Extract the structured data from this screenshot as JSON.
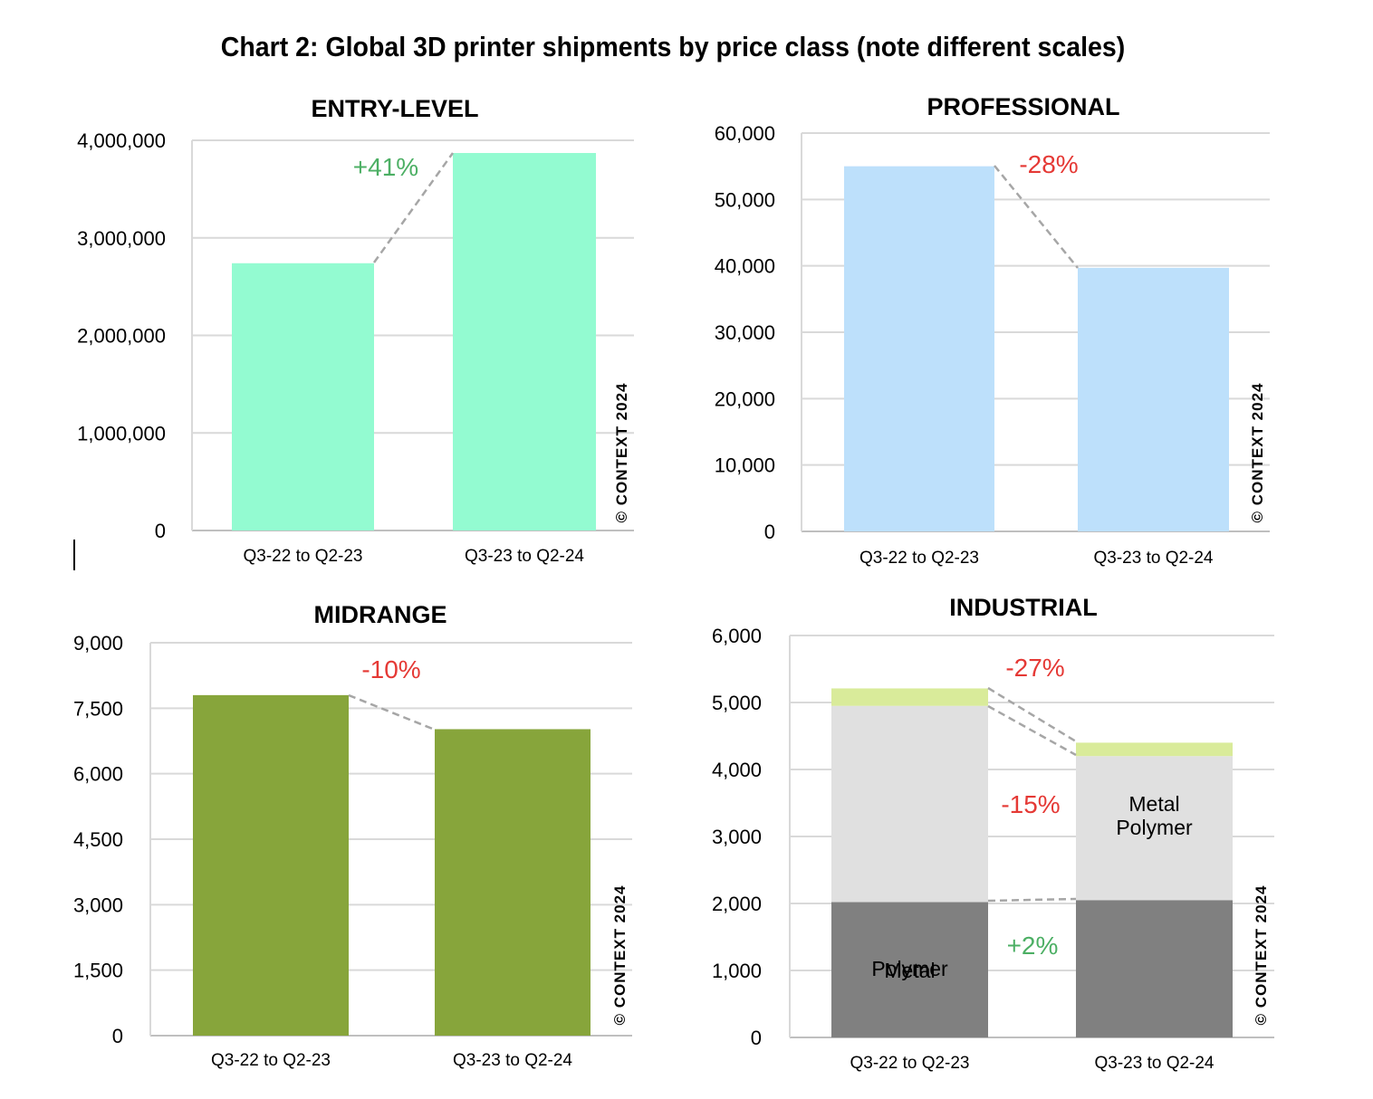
{
  "title": "Chart 2: Global 3D printer shipments by price class (note different scales)",
  "chart_data": [
    {
      "id": "entry",
      "type": "bar",
      "title": "ENTRY-LEVEL",
      "categories": [
        "Q3-22 to Q2-23",
        "Q3-23 to Q2-24"
      ],
      "values": [
        2740000,
        3870000
      ],
      "ylim": [
        0,
        4000000
      ],
      "yticks": [
        0,
        1000000,
        2000000,
        3000000,
        4000000
      ],
      "ytick_labels": [
        "0",
        "1,000,000",
        "2,000,000",
        "3,000,000",
        "4,000,000"
      ],
      "bar_color": "#93fbd1",
      "annotations": [
        {
          "text": "+41%",
          "color": "#4caf64"
        }
      ],
      "watermark": "© CONTEXT 2024"
    },
    {
      "id": "professional",
      "type": "bar",
      "title": "PROFESSIONAL",
      "categories": [
        "Q3-22 to Q2-23",
        "Q3-23 to Q2-24"
      ],
      "values": [
        55000,
        39700
      ],
      "ylim": [
        0,
        60000
      ],
      "yticks": [
        0,
        10000,
        20000,
        30000,
        40000,
        50000,
        60000
      ],
      "ytick_labels": [
        "0",
        "10,000",
        "20,000",
        "30,000",
        "40,000",
        "50,000",
        "60,000"
      ],
      "bar_color": "#bde0fb",
      "annotations": [
        {
          "text": "-28%",
          "color": "#e53935"
        }
      ],
      "watermark": "© CONTEXT 2024"
    },
    {
      "id": "midrange",
      "type": "bar",
      "title": "MIDRANGE",
      "categories": [
        "Q3-22 to Q2-23",
        "Q3-23 to Q2-24"
      ],
      "values": [
        7800,
        7020
      ],
      "ylim": [
        0,
        9000
      ],
      "yticks": [
        0,
        1500,
        3000,
        4500,
        6000,
        7500,
        9000
      ],
      "ytick_labels": [
        "0",
        "1,500",
        "3,000",
        "4,500",
        "6,000",
        "7,500",
        "9,000"
      ],
      "bar_color": "#87a53b",
      "annotations": [
        {
          "text": "-10%",
          "color": "#e53935"
        }
      ],
      "watermark": "© CONTEXT 2024"
    },
    {
      "id": "industrial",
      "type": "bar",
      "stacked": true,
      "title": "INDUSTRIAL",
      "categories": [
        "Q3-22 to Q2-23",
        "Q3-23 to Q2-24"
      ],
      "series": [
        {
          "name": "Metal",
          "values": [
            2020,
            2050
          ],
          "color": "#808080"
        },
        {
          "name": "Polymer",
          "values": [
            2930,
            2150
          ],
          "color": "#e0e0e0"
        },
        {
          "values": [
            260,
            200
          ],
          "color": "#d9eb9a"
        }
      ],
      "ylim": [
        0,
        6000
      ],
      "yticks": [
        0,
        1000,
        2000,
        3000,
        4000,
        5000,
        6000
      ],
      "ytick_labels": [
        "0",
        "1,000",
        "2,000",
        "3,000",
        "4,000",
        "5,000",
        "6,000"
      ],
      "annotations": [
        {
          "text": "-27%",
          "color": "#e53935"
        },
        {
          "text": "-15%",
          "color": "#e53935"
        },
        {
          "text": "+2%",
          "color": "#4caf64"
        }
      ],
      "watermark": "© CONTEXT 2024"
    }
  ]
}
